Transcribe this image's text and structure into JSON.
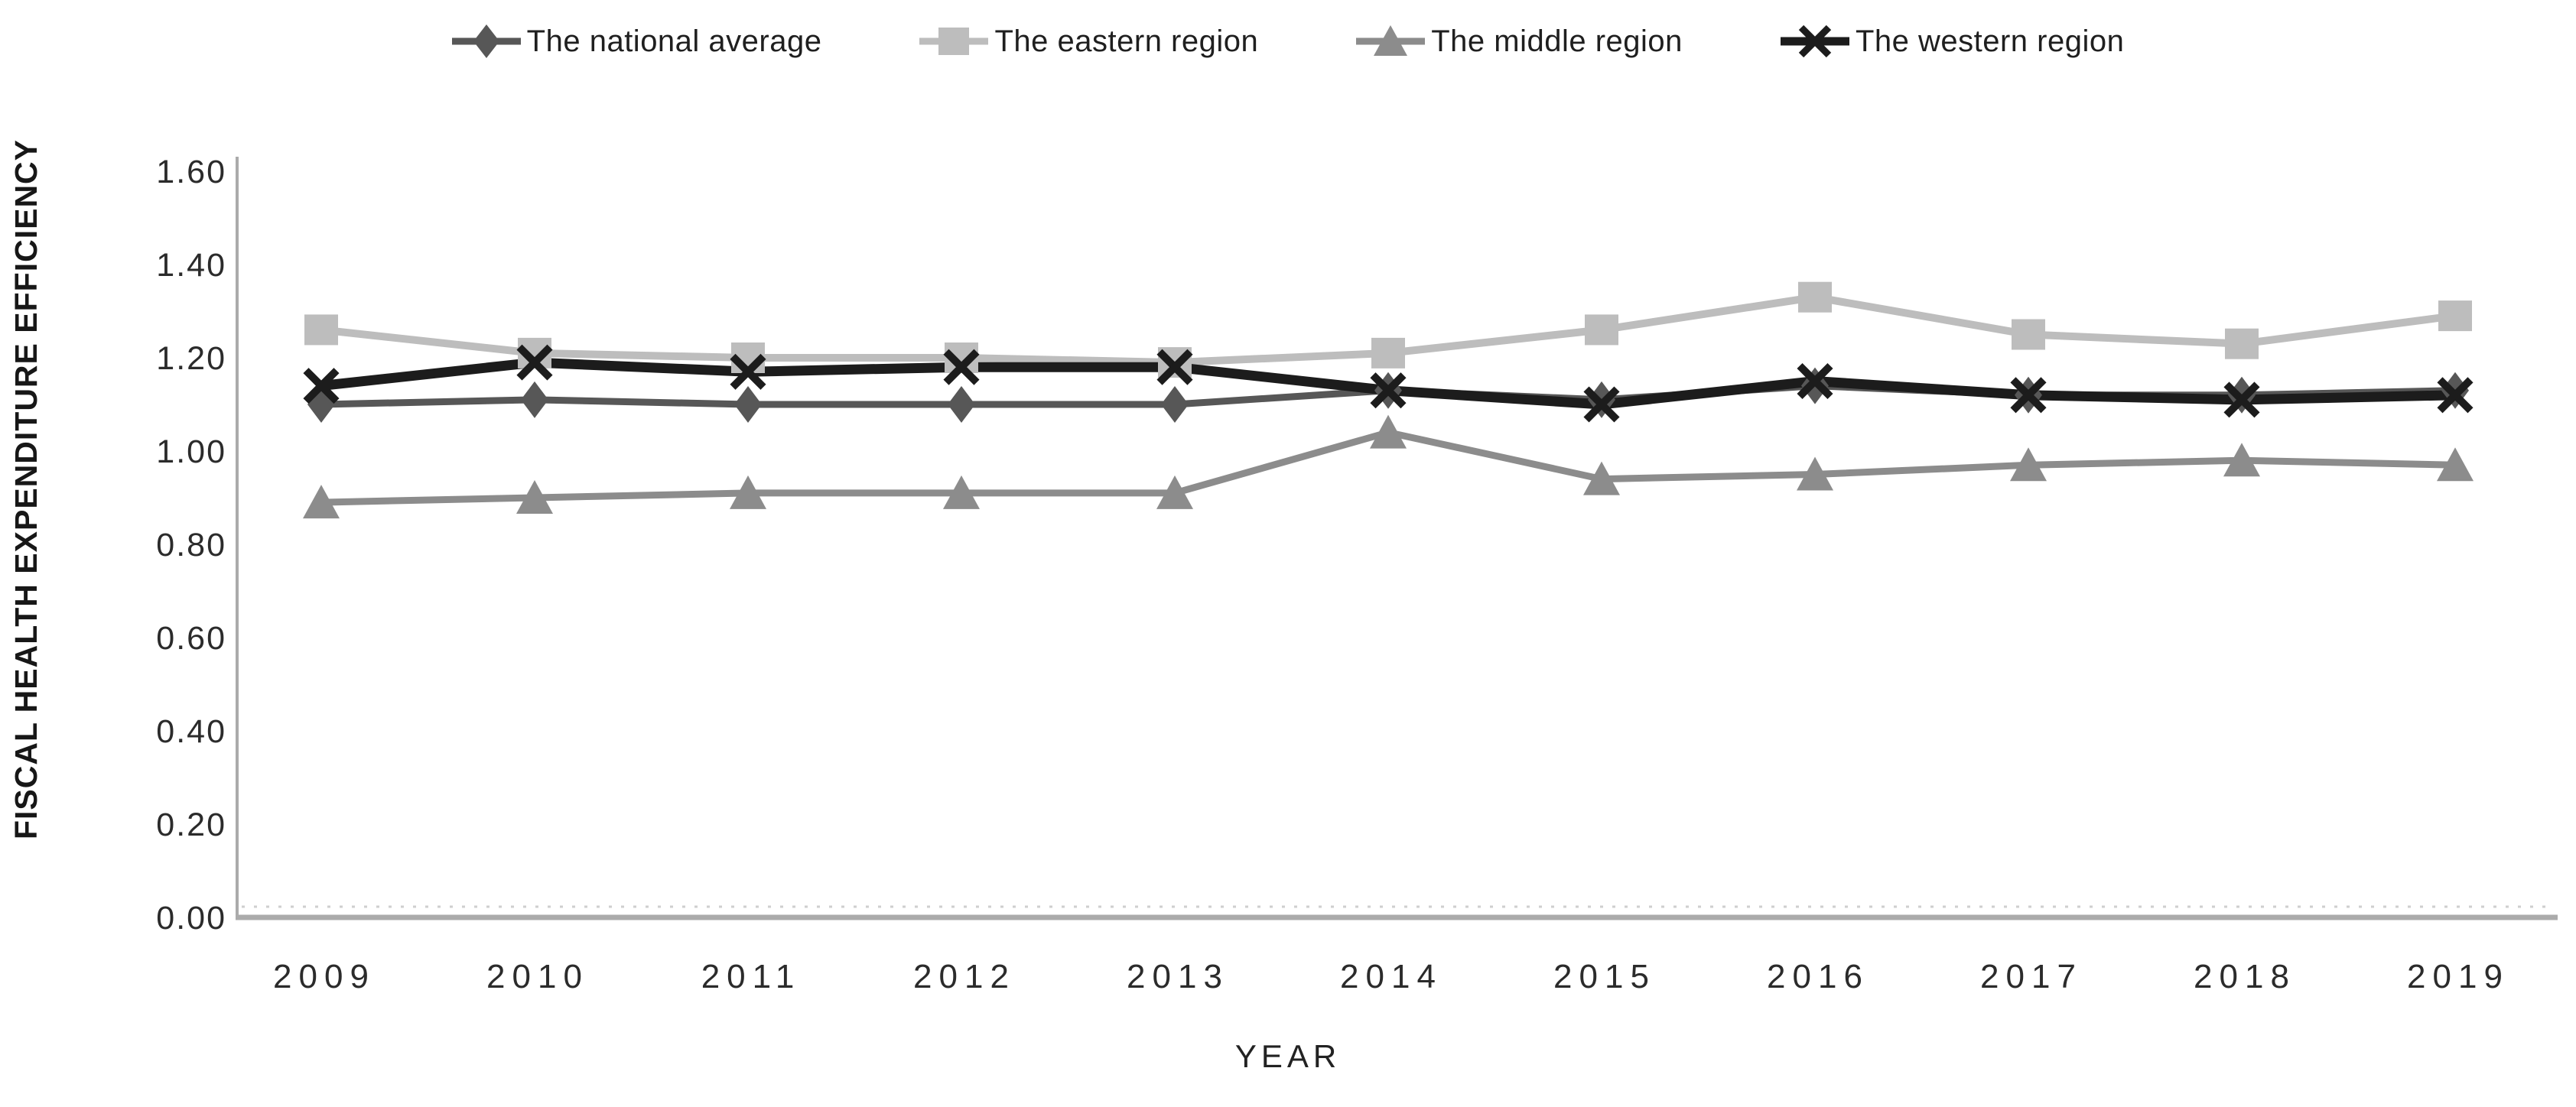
{
  "chart_data": {
    "type": "line",
    "title": "",
    "xlabel": "YEAR",
    "ylabel": "FISCAL HEALTH EXPENDITURE EFFICIENCY",
    "categories": [
      "2009",
      "2010",
      "2011",
      "2012",
      "2013",
      "2014",
      "2015",
      "2016",
      "2017",
      "2018",
      "2019"
    ],
    "series": [
      {
        "name": "The eastern region",
        "marker": "square",
        "color": "#bdbdbd",
        "line_width": 10,
        "values": [
          1.26,
          1.21,
          1.2,
          1.2,
          1.19,
          1.21,
          1.26,
          1.33,
          1.25,
          1.23,
          1.29
        ]
      },
      {
        "name": "The middle region",
        "marker": "triangle",
        "color": "#8c8c8c",
        "line_width": 9,
        "values": [
          0.89,
          0.9,
          0.91,
          0.91,
          0.91,
          1.04,
          0.94,
          0.95,
          0.97,
          0.98,
          0.97
        ]
      },
      {
        "name": "The national average",
        "marker": "diamond",
        "color": "#575757",
        "line_width": 9,
        "values": [
          1.1,
          1.11,
          1.1,
          1.1,
          1.1,
          1.13,
          1.11,
          1.14,
          1.12,
          1.12,
          1.13
        ]
      },
      {
        "name": "The western region",
        "marker": "x",
        "color": "#1c1c1c",
        "line_width": 13,
        "values": [
          1.14,
          1.19,
          1.17,
          1.18,
          1.18,
          1.13,
          1.1,
          1.15,
          1.12,
          1.11,
          1.12
        ]
      }
    ],
    "legend_order": [
      "The national average",
      "The eastern region",
      "The middle region",
      "The western region"
    ],
    "legend_position": "top",
    "ylim": [
      0,
      1.6
    ],
    "ytick_step": 0.2,
    "ytick_labels": [
      "0.00",
      "0.20",
      "0.40",
      "0.60",
      "0.80",
      "1.00",
      "1.20",
      "1.40",
      "1.60"
    ],
    "grid": "off",
    "zero_gridline_style": "dotted",
    "axis_color": "#ababab",
    "text_color": "#2b2b2b"
  }
}
